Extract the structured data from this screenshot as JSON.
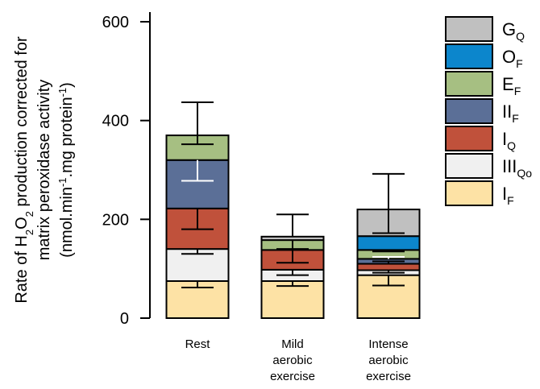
{
  "chart_data": {
    "type": "bar",
    "stacked": true,
    "categories": [
      [
        "Rest"
      ],
      [
        "Mild",
        "aerobic",
        "exercise"
      ],
      [
        "Intense",
        "aerobic",
        "exercise"
      ]
    ],
    "ylabel": {
      "line1": {
        "pre": "Rate of H",
        "sub1": "2",
        "mid": "O",
        "sub2": "2",
        "post": " production corrected for"
      },
      "line2": "matrix peroxidase activity",
      "line3": {
        "pre": "(nmol.min",
        "sup1": "-1",
        "mid": ".mg protein",
        "sup2": "-1",
        "post": ")"
      }
    },
    "ylim": [
      0,
      600
    ],
    "yticks": [
      0,
      200,
      400,
      600
    ],
    "series": [
      {
        "name": "I",
        "sub": "F",
        "color": "#fde2a5",
        "values": [
          75,
          75,
          87
        ],
        "err": [
          62,
          65,
          66
        ],
        "err_color": "#000000"
      },
      {
        "name": "III",
        "sub": "Qo",
        "color": "#f0f0f0",
        "values": [
          65,
          23,
          10
        ],
        "err": [
          130,
          87,
          92
        ],
        "err_color": "#000000"
      },
      {
        "name": "I",
        "sub": "Q",
        "color": "#c0513b",
        "values": [
          82,
          40,
          13
        ],
        "err": [
          180,
          112,
          115
        ],
        "err_color": "#000000"
      },
      {
        "name": "II",
        "sub": "F",
        "color": "#5b6f97",
        "values": [
          98,
          0,
          10
        ],
        "err": [
          278,
          null,
          124
        ],
        "err_color": "#ffffff"
      },
      {
        "name": "E",
        "sub": "F",
        "color": "#a6bf82",
        "values": [
          50,
          20,
          18
        ],
        "err": [
          352,
          140,
          135
        ],
        "err_color": "#000000"
      },
      {
        "name": "O",
        "sub": "F",
        "color": "#0c86cc",
        "values": [
          0,
          0,
          28
        ],
        "err": [
          null,
          null,
          null
        ],
        "err_color": "#000000"
      },
      {
        "name": "G",
        "sub": "Q",
        "color": "#c0c0c0",
        "values": [
          0,
          7,
          54
        ],
        "err": [
          null,
          null,
          172
        ],
        "err_color": "#000000"
      }
    ],
    "total_err": [
      437,
      210,
      292
    ],
    "legend_order": [
      6,
      5,
      4,
      3,
      2,
      1,
      0
    ],
    "legend_position": "right",
    "grid": false
  }
}
